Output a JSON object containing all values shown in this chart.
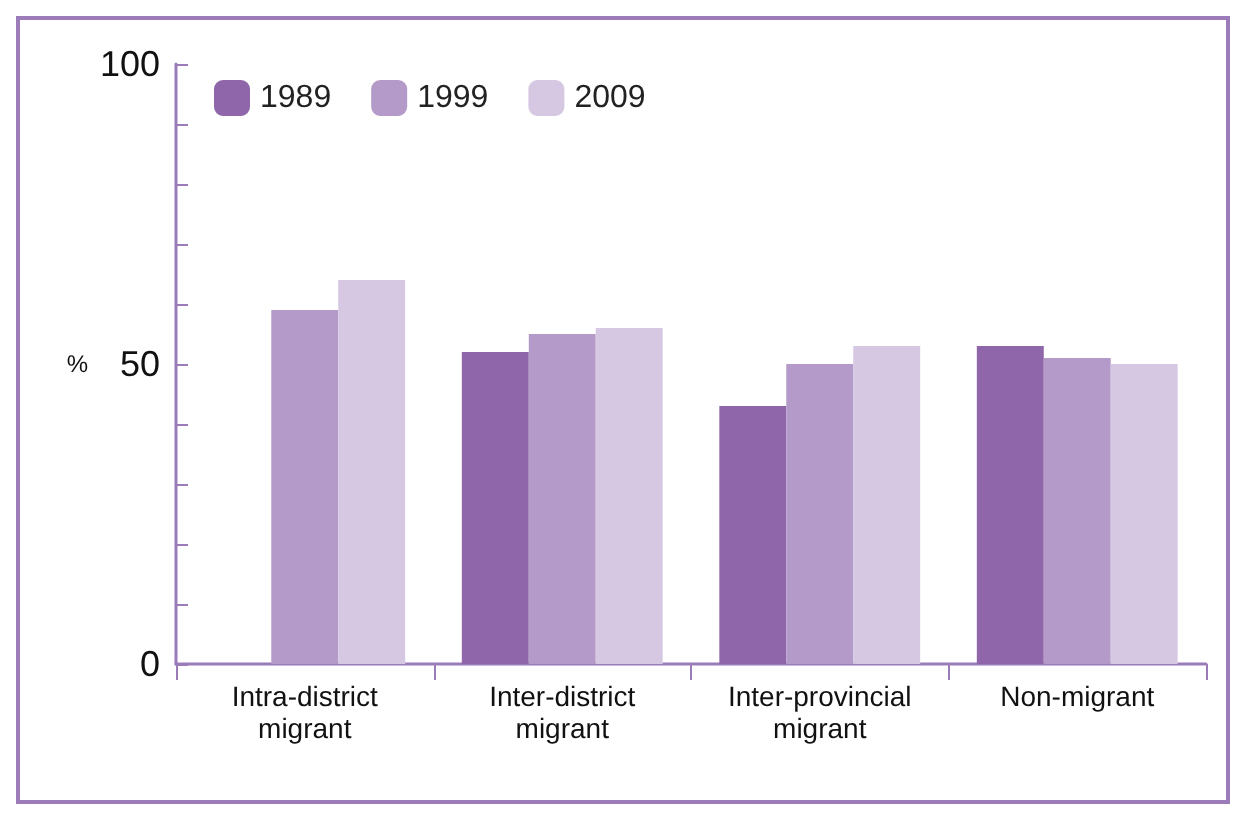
{
  "chart_data": {
    "type": "bar",
    "ylabel": "%",
    "categories": [
      "Intra-district\nmigrant",
      "Inter-district\nmigrant",
      "Inter-provincial\nmigrant",
      "Non-migrant"
    ],
    "series": [
      {
        "name": "1989",
        "color": "#8f66aa",
        "values": [
          null,
          52,
          43,
          53
        ]
      },
      {
        "name": "1999",
        "color": "#b49ac8",
        "values": [
          59,
          55,
          50,
          51
        ]
      },
      {
        "name": "2009",
        "color": "#d6c8e2",
        "values": [
          64,
          56,
          53,
          50
        ]
      }
    ],
    "ylim": [
      0,
      100
    ],
    "yticks": [
      0,
      {
        "value": 10,
        "label": null
      },
      {
        "value": 20,
        "label": null
      },
      {
        "value": 30,
        "label": null
      },
      {
        "value": 40,
        "label": null
      },
      50,
      {
        "value": 60,
        "label": null
      },
      {
        "value": 70,
        "label": null
      },
      {
        "value": 80,
        "label": null
      },
      {
        "value": 90,
        "label": null
      },
      100
    ],
    "grid": false,
    "legend": "top left"
  }
}
